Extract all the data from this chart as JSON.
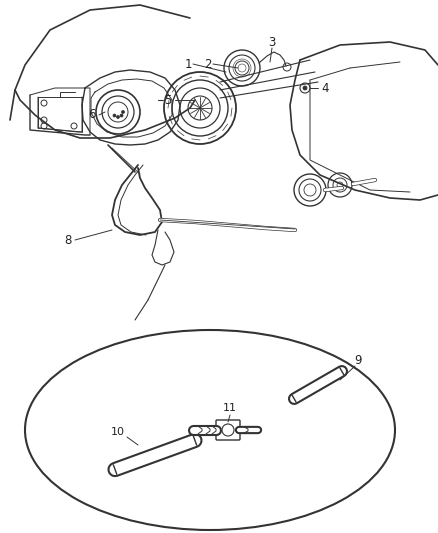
{
  "bg_color": "#ffffff",
  "line_color": "#333333",
  "label_color": "#222222",
  "fig_width": 4.38,
  "fig_height": 5.33,
  "dpi": 100
}
